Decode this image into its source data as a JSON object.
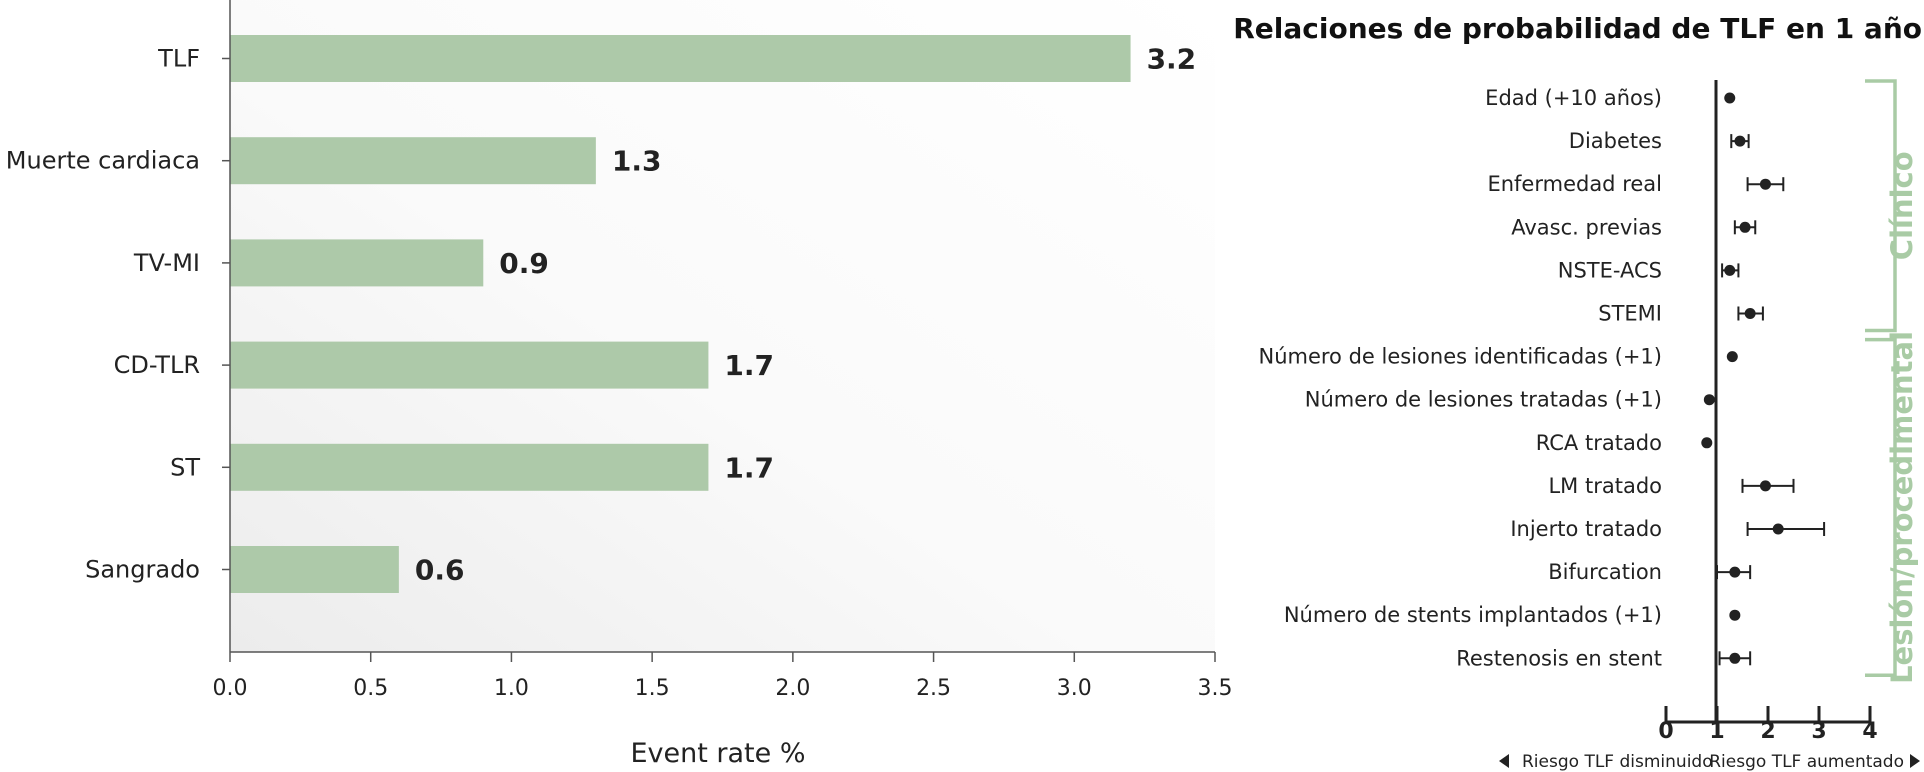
{
  "colors": {
    "bar": "#adc9a9",
    "bracket": "#a9cba5",
    "ink": "#222222"
  },
  "chart_data": [
    {
      "type": "bar",
      "orientation": "horizontal",
      "categories": [
        "TLF",
        "Muerte cardiaca",
        "TV-MI",
        "CD-TLR",
        "ST",
        "Sangrado"
      ],
      "values": [
        3.2,
        1.3,
        0.9,
        1.7,
        1.7,
        0.6
      ],
      "value_labels": [
        "3.2",
        "1.3",
        "0.9",
        "1.7",
        "1.7",
        "0.6"
      ],
      "xlabel": "Event rate %",
      "xlim": [
        0,
        3.5
      ],
      "xticks": [
        "0.0",
        "0.5",
        "1.0",
        "1.5",
        "2.0",
        "2.5",
        "3.0",
        "3.5"
      ],
      "grid": false
    },
    {
      "type": "forest",
      "title": "Relaciones de probabilidad de TLF en 1 año",
      "xlim": [
        0,
        4
      ],
      "reference_line": 1,
      "xticks": [
        "0",
        "1",
        "2",
        "3",
        "4"
      ],
      "direction_left": "Riesgo TLF disminuido",
      "direction_right": "Riesgo TLF aumentado",
      "rows": [
        {
          "label": "Edad (+10 años)",
          "estimate": 1.25,
          "ci": [
            1.2,
            1.3
          ]
        },
        {
          "label": "Diabetes",
          "estimate": 1.45,
          "ci": [
            1.28,
            1.62
          ]
        },
        {
          "label": "Enfermedad real",
          "estimate": 1.95,
          "ci": [
            1.6,
            2.3
          ]
        },
        {
          "label": "Avasc. previas",
          "estimate": 1.55,
          "ci": [
            1.35,
            1.75
          ]
        },
        {
          "label": "NSTE-ACS",
          "estimate": 1.25,
          "ci": [
            1.1,
            1.42
          ]
        },
        {
          "label": "STEMI",
          "estimate": 1.65,
          "ci": [
            1.42,
            1.9
          ]
        },
        {
          "label": "Número de lesiones identificadas (+1)",
          "estimate": 1.3,
          "ci": [
            1.25,
            1.35
          ]
        },
        {
          "label": "Número de lesiones tratadas (+1)",
          "estimate": 0.85,
          "ci": [
            0.8,
            0.9
          ]
        },
        {
          "label": "RCA tratado",
          "estimate": 0.8,
          "ci": [
            0.76,
            0.84
          ]
        },
        {
          "label": "LM tratado",
          "estimate": 1.95,
          "ci": [
            1.5,
            2.5
          ]
        },
        {
          "label": "Injerto tratado",
          "estimate": 2.2,
          "ci": [
            1.6,
            3.1
          ]
        },
        {
          "label": "Bifurcation",
          "estimate": 1.35,
          "ci": [
            1.0,
            1.65
          ]
        },
        {
          "label": "Número de stents implantados (+1)",
          "estimate": 1.35,
          "ci": [
            1.3,
            1.4
          ]
        },
        {
          "label": "Restenosis en stent",
          "estimate": 1.35,
          "ci": [
            1.05,
            1.65
          ]
        }
      ],
      "groups": [
        {
          "label": "Clínico",
          "rows": [
            0,
            5
          ]
        },
        {
          "label": "Lesión/procedimental",
          "rows": [
            6,
            13
          ]
        }
      ]
    }
  ]
}
